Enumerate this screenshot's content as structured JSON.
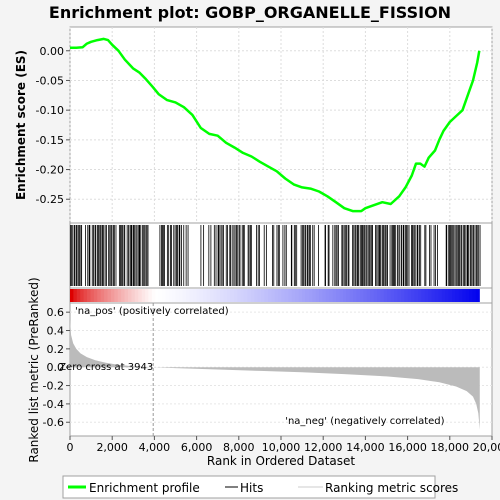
{
  "chart_data": {
    "type": "line",
    "title": "Enrichment plot: GOBP_ORGANELLE_FISSION",
    "ylabel_top": "Enrichment score (ES)",
    "ylabel_bottom": "Ranked list metric (PreRanked)",
    "xlabel": "Rank in Ordered Dataset",
    "xlim": [
      0,
      20000
    ],
    "ylim_es": [
      -0.29,
      0.04
    ],
    "ylim_metric": [
      -0.75,
      0.7
    ],
    "x_ticks": [
      "0",
      "2,000",
      "4,000",
      "6,000",
      "8,000",
      "10,000",
      "12,000",
      "14,000",
      "16,000",
      "18,000",
      "20,000"
    ],
    "x_tick_values": [
      0,
      2000,
      4000,
      6000,
      8000,
      10000,
      12000,
      14000,
      16000,
      18000,
      20000
    ],
    "es_ticks": [
      "0.00",
      "-0.05",
      "-0.10",
      "-0.15",
      "-0.20",
      "-0.25"
    ],
    "es_tick_values": [
      0,
      -0.05,
      -0.1,
      -0.15,
      -0.2,
      -0.25
    ],
    "metric_ticks": [
      "0.6",
      "0.4",
      "0.2",
      "0.0",
      "-0.2",
      "-0.4",
      "-0.6"
    ],
    "metric_tick_values": [
      0.6,
      0.4,
      0.2,
      0,
      -0.2,
      -0.4,
      -0.6
    ],
    "es_curve": {
      "x": [
        0,
        300,
        600,
        800,
        1000,
        1300,
        1600,
        1800,
        2000,
        2300,
        2600,
        3000,
        3300,
        3600,
        3900,
        4200,
        4600,
        5000,
        5400,
        5800,
        6200,
        6600,
        7000,
        7400,
        7800,
        8200,
        8600,
        9000,
        9400,
        9800,
        10200,
        10600,
        11000,
        11400,
        11800,
        12200,
        12600,
        13000,
        13400,
        13800,
        14000,
        14400,
        14800,
        15200,
        15600,
        15900,
        16200,
        16400,
        16600,
        16800,
        17000,
        17300,
        17500,
        17700,
        18000,
        18300,
        18600,
        18900,
        19100,
        19300,
        19400
      ],
      "y": [
        0.005,
        0.005,
        0.006,
        0.012,
        0.015,
        0.018,
        0.02,
        0.018,
        0.01,
        0.0,
        -0.015,
        -0.03,
        -0.037,
        -0.048,
        -0.06,
        -0.073,
        -0.083,
        -0.087,
        -0.095,
        -0.108,
        -0.13,
        -0.14,
        -0.143,
        -0.155,
        -0.163,
        -0.172,
        -0.178,
        -0.187,
        -0.195,
        -0.203,
        -0.215,
        -0.225,
        -0.23,
        -0.232,
        -0.237,
        -0.245,
        -0.255,
        -0.265,
        -0.27,
        -0.27,
        -0.265,
        -0.26,
        -0.255,
        -0.258,
        -0.245,
        -0.23,
        -0.21,
        -0.19,
        -0.19,
        -0.195,
        -0.18,
        -0.168,
        -0.15,
        -0.135,
        -0.12,
        -0.11,
        -0.1,
        -0.07,
        -0.05,
        -0.02,
        0.0
      ]
    },
    "metric_curve": {
      "x": [
        0,
        50,
        150,
        300,
        500,
        800,
        1200,
        1700,
        2300,
        3000,
        3943,
        5000,
        7000,
        9000,
        11000,
        13000,
        15000,
        16500,
        17500,
        18300,
        18800,
        19100,
        19250,
        19350,
        19420
      ],
      "y": [
        0.52,
        0.35,
        0.26,
        0.2,
        0.15,
        0.11,
        0.075,
        0.048,
        0.025,
        0.01,
        0.0,
        -0.01,
        -0.025,
        -0.04,
        -0.055,
        -0.075,
        -0.1,
        -0.13,
        -0.165,
        -0.21,
        -0.26,
        -0.32,
        -0.4,
        -0.5,
        -0.68
      ]
    },
    "zero_cross": 3943,
    "hit_regions": [
      [
        0,
        3700,
        0.9
      ],
      [
        4200,
        5600,
        0.65
      ],
      [
        6000,
        9200,
        0.55
      ],
      [
        9300,
        12100,
        0.6
      ],
      [
        12100,
        13400,
        0.5
      ],
      [
        13400,
        16600,
        0.9
      ],
      [
        16800,
        17600,
        0.75
      ],
      [
        17800,
        19400,
        1.0
      ]
    ],
    "annotations": {
      "pos": "'na_pos' (positively correlated)",
      "neg": "'na_neg' (negatively correlated)",
      "zero": "Zero cross at 3943"
    },
    "legend": [
      "Enrichment profile",
      "Hits",
      "Ranking metric scores"
    ],
    "colors": {
      "es": "#00ff00",
      "pos": "#dd0000",
      "neg": "#0000ee",
      "metric_fill": "#bbbbbb",
      "hits": "#000000"
    }
  }
}
